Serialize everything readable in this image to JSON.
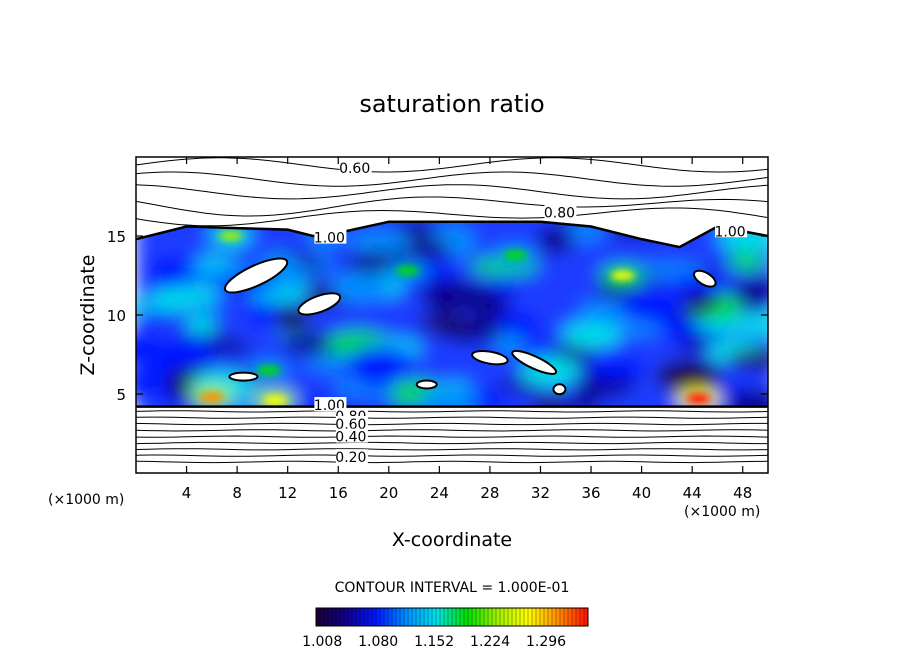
{
  "chart_data": {
    "type": "heatmap",
    "title": "saturation ratio",
    "xlabel": "X-coordinate",
    "ylabel": "Z-coordinate",
    "x_unit": "(×1000 m)",
    "y_unit": "(×1000 m)",
    "xlim": [
      0,
      50
    ],
    "ylim": [
      0,
      20
    ],
    "x_ticks": [
      "4",
      "8",
      "12",
      "16",
      "20",
      "24",
      "28",
      "32",
      "36",
      "40",
      "44",
      "48"
    ],
    "y_ticks": [
      "5",
      "10",
      "15"
    ],
    "contour_interval_text": "CONTOUR INTERVAL = 1.000E-01",
    "contour_labels": [
      {
        "text": "0.60",
        "x": 17.3,
        "z": 19.3
      },
      {
        "text": "0.80",
        "x": 33.5,
        "z": 16.5
      },
      {
        "text": "1.00",
        "x": 15.3,
        "z": 14.9
      },
      {
        "text": "1.00",
        "x": 47.0,
        "z": 15.3
      },
      {
        "text": "1.00",
        "x": 15.3,
        "z": 4.3
      },
      {
        "text": "0.80",
        "x": 17.0,
        "z": 3.6
      },
      {
        "text": "0.60",
        "x": 17.0,
        "z": 3.1
      },
      {
        "text": "0.40",
        "x": 17.0,
        "z": 2.3
      },
      {
        "text": "0.20",
        "x": 17.0,
        "z": 1.0
      }
    ],
    "colorbar": {
      "min": 1.0,
      "max": 1.35,
      "tick_labels": [
        "1.008",
        "1.080",
        "1.152",
        "1.224",
        "1.296"
      ],
      "colors": [
        "#1a0030",
        "#10008c",
        "#0018ff",
        "#0090ff",
        "#00e0e8",
        "#00e000",
        "#a0f000",
        "#ffff00",
        "#ff9000",
        "#ff1000"
      ]
    },
    "supersaturation_region": {
      "z_bottom": 4.2,
      "z_top_approx": 15.8
    },
    "hotspots": [
      {
        "x": 7.5,
        "z": 15.0,
        "value": 1.22
      },
      {
        "x": 6.0,
        "z": 4.8,
        "value": 1.3
      },
      {
        "x": 11.0,
        "z": 4.6,
        "value": 1.28
      },
      {
        "x": 44.5,
        "z": 4.7,
        "value": 1.32
      },
      {
        "x": 38.5,
        "z": 12.5,
        "value": 1.26
      },
      {
        "x": 30.0,
        "z": 13.8,
        "value": 1.2
      },
      {
        "x": 21.5,
        "z": 12.8,
        "value": 1.18
      },
      {
        "x": 10.5,
        "z": 6.5,
        "value": 1.2
      }
    ],
    "grid": false
  }
}
